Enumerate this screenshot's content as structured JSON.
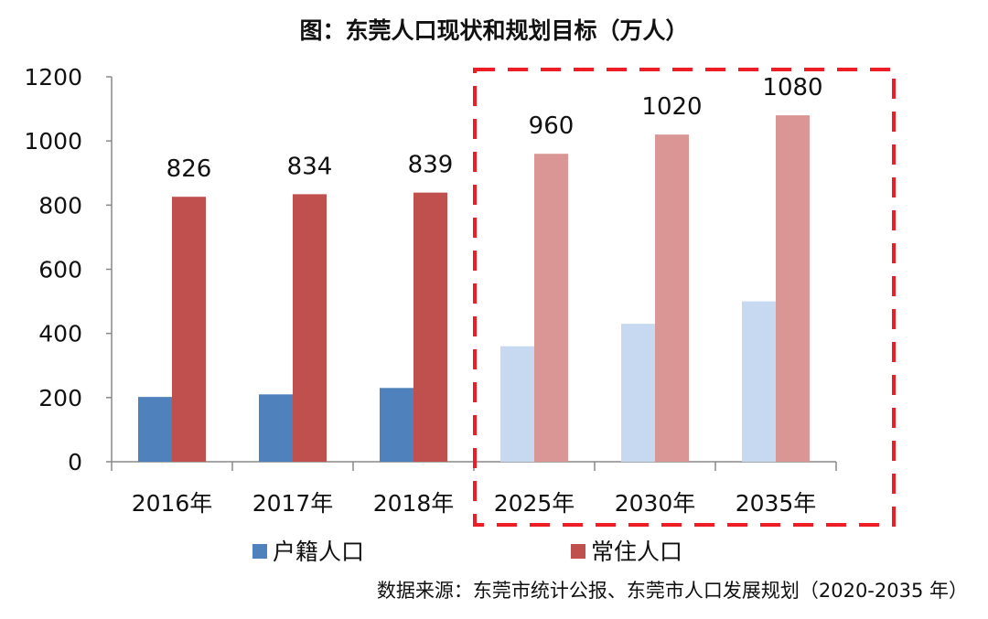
{
  "chart_data": {
    "type": "bar",
    "title": "图：东莞人口现状和规划目标（万人）",
    "categories": [
      "2016年",
      "2017年",
      "2018年",
      "2025年",
      "2030年",
      "2035年"
    ],
    "series": [
      {
        "name": "户籍人口",
        "values": [
          202,
          210,
          230,
          360,
          430,
          500
        ],
        "color": "#4f81bd",
        "projection_color": "#c6d9f0"
      },
      {
        "name": "常住人口",
        "values": [
          826,
          834,
          839,
          960,
          1020,
          1080
        ],
        "color": "#c0504d",
        "projection_color": "#d99694",
        "data_labels": true
      }
    ],
    "projection_categories": [
      "2025年",
      "2030年",
      "2035年"
    ],
    "highlight_box_color": "#ee1c25",
    "ylim": [
      0,
      1200
    ],
    "yticks": [
      0,
      200,
      400,
      600,
      800,
      1000,
      1200
    ],
    "grid": false,
    "legend": "bottom",
    "source": "数据来源：东莞市统计公报、东莞市人口发展规划（2020-2035 年）"
  }
}
